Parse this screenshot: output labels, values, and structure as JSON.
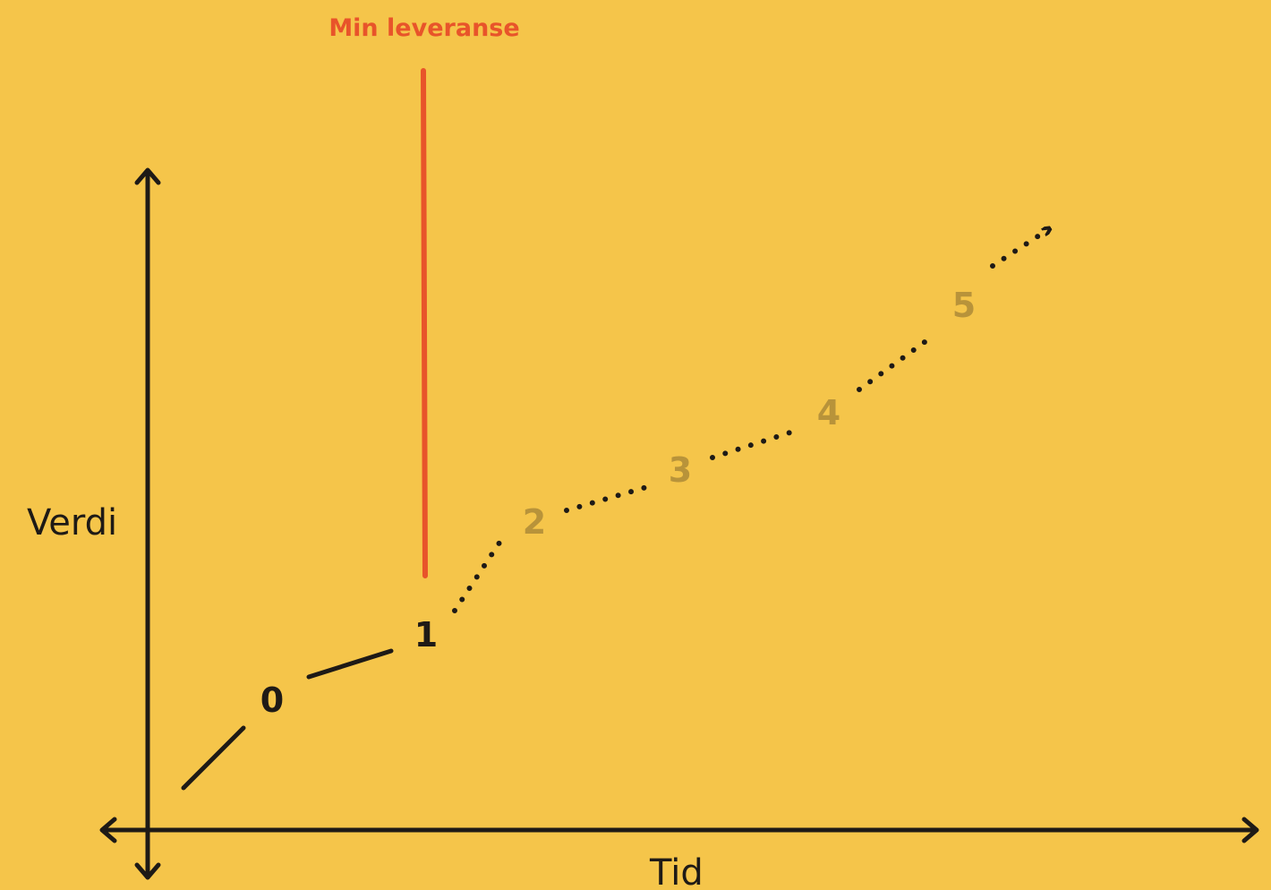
{
  "colors": {
    "background": "#F5C54A",
    "ink": "#1E1A16",
    "accent": "#E8542A",
    "future": "#B8933A"
  },
  "axes": {
    "y_label": "Verdi",
    "x_label": "Tid"
  },
  "delivery_marker": {
    "label": "Min leveranse"
  },
  "milestones": [
    {
      "label": "0",
      "state": "done"
    },
    {
      "label": "1",
      "state": "done"
    },
    {
      "label": "2",
      "state": "future"
    },
    {
      "label": "3",
      "state": "future"
    },
    {
      "label": "4",
      "state": "future"
    },
    {
      "label": "5",
      "state": "future"
    }
  ]
}
